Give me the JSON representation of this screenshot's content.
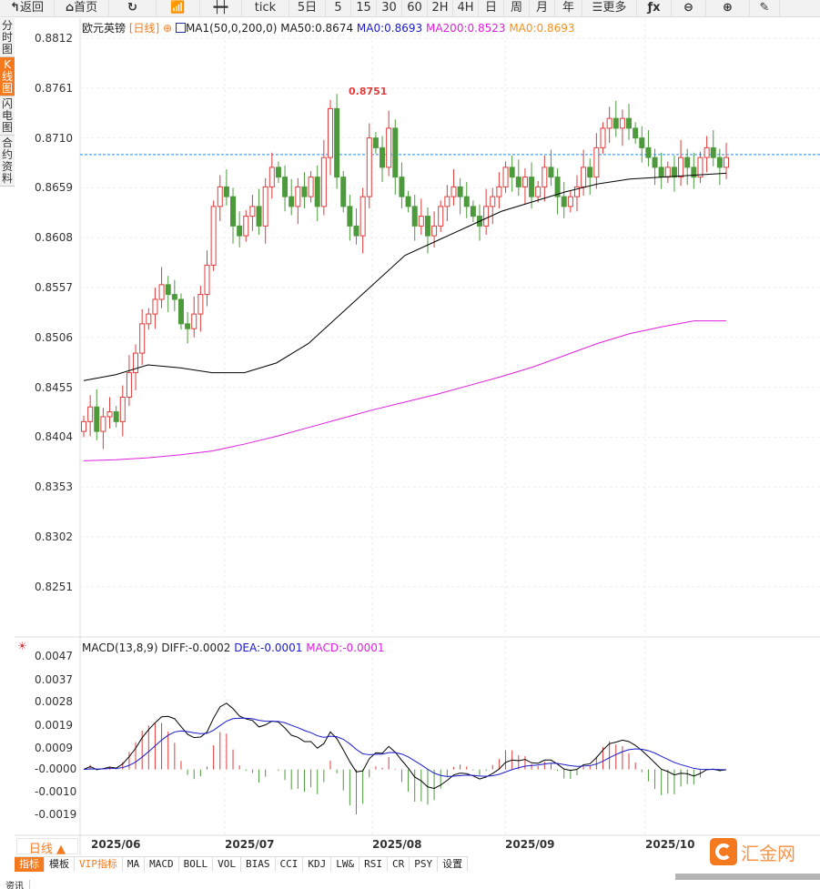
{
  "toolbar": [
    {
      "label": "返回",
      "icon": "back-arrow-icon"
    },
    {
      "label": "首页",
      "icon": "home-icon"
    },
    {
      "label": "",
      "icon": "refresh-icon"
    },
    {
      "label": "",
      "icon": "bar-chart-icon"
    },
    {
      "label": "",
      "icon": "candlestick-icon"
    },
    {
      "label": "tick"
    },
    {
      "label": "5日"
    },
    {
      "label": "5"
    },
    {
      "label": "15"
    },
    {
      "label": "30"
    },
    {
      "label": "60"
    },
    {
      "label": "2H"
    },
    {
      "label": "4H"
    },
    {
      "label": "日"
    },
    {
      "label": "周"
    },
    {
      "label": "月"
    },
    {
      "label": "年"
    },
    {
      "label": "更多",
      "icon": "menu-icon"
    },
    {
      "label": "",
      "icon": "fx-icon"
    },
    {
      "label": "",
      "icon": "zoom-out-icon"
    },
    {
      "label": "",
      "icon": "zoom-in-icon"
    },
    {
      "label": "",
      "icon": "pen-icon"
    }
  ],
  "side_tabs": [
    "分时图",
    "K线图",
    "闪电图",
    "合约资料"
  ],
  "legend": {
    "symbol": "欧元英镑",
    "period": "[日线]",
    "ma_name": "MA1(50,0,200,0)",
    "ma50": "MA50:0.8674",
    "ma0a": "MA0:0.8693",
    "ma200": "MA200:0.8523",
    "ma0b": "MA0:0.8693"
  },
  "macd_legend": {
    "name": "MACD(13,8,9)",
    "diff": "DIFF:-0.0002",
    "dea": "DEA:-0.0001",
    "macd": "MACD:-0.0001"
  },
  "colors": {
    "up": "#e03c3c",
    "down": "#4c9a3c",
    "ma50": "#000000",
    "ma200": "#e020e0",
    "dea": "#1a1acc",
    "accent": "#f57a1f"
  },
  "price_axis": [
    "0.8812",
    "0.8761",
    "0.8710",
    "0.8659",
    "0.8608",
    "0.8557",
    "0.8506",
    "0.8455",
    "0.8404",
    "0.8353",
    "0.8302",
    "0.8251"
  ],
  "macd_axis": [
    "0.0047",
    "0.0037",
    "0.0028",
    "0.0019",
    "0.0009",
    "-0.0000",
    "-0.0010",
    "-0.0019"
  ],
  "max_label": "0.8751",
  "period_button": "日线 ▲",
  "x_labels": [
    "2025/06",
    "2025/07",
    "2025/08",
    "2025/09",
    "2025/10"
  ],
  "bottom_tabs": [
    "指标",
    "模板",
    "VIP指标",
    "MA",
    "MACD",
    "BOLL",
    "VOL",
    "BIAS",
    "CCI",
    "KDJ",
    "LW&",
    "RSI",
    "CR",
    "PSY",
    "设置"
  ],
  "logo": "汇金网",
  "status": "资讯",
  "chart_data": {
    "type": "candlestick",
    "current_price": 0.8693,
    "price_range": [
      0.8251,
      0.8812
    ],
    "closes": [
      0.842,
      0.8435,
      0.841,
      0.8425,
      0.843,
      0.842,
      0.8445,
      0.847,
      0.849,
      0.852,
      0.853,
      0.8545,
      0.856,
      0.855,
      0.8545,
      0.852,
      0.8515,
      0.853,
      0.855,
      0.858,
      0.864,
      0.866,
      0.865,
      0.862,
      0.861,
      0.863,
      0.864,
      0.862,
      0.866,
      0.868,
      0.867,
      0.865,
      0.864,
      0.866,
      0.865,
      0.867,
      0.864,
      0.869,
      0.874,
      0.867,
      0.864,
      0.862,
      0.861,
      0.865,
      0.871,
      0.87,
      0.868,
      0.872,
      0.867,
      0.865,
      0.864,
      0.862,
      0.863,
      0.861,
      0.862,
      0.864,
      0.865,
      0.866,
      0.865,
      0.864,
      0.863,
      0.862,
      0.864,
      0.865,
      0.866,
      0.868,
      0.867,
      0.866,
      0.867,
      0.865,
      0.866,
      0.868,
      0.867,
      0.865,
      0.864,
      0.865,
      0.866,
      0.868,
      0.867,
      0.87,
      0.872,
      0.873,
      0.872,
      0.873,
      0.872,
      0.871,
      0.87,
      0.869,
      0.868,
      0.867,
      0.868,
      0.867,
      0.869,
      0.868,
      0.867,
      0.869,
      0.87,
      0.869,
      0.868,
      0.869
    ],
    "ma50": [
      0.8462,
      0.8468,
      0.8478,
      0.8475,
      0.847,
      0.847,
      0.848,
      0.85,
      0.853,
      0.856,
      0.859,
      0.8605,
      0.862,
      0.8635,
      0.8645,
      0.8655,
      0.8663,
      0.8668,
      0.867,
      0.8672,
      0.8674
    ],
    "ma200": [
      0.838,
      0.8381,
      0.8383,
      0.8386,
      0.839,
      0.8397,
      0.8405,
      0.8414,
      0.8423,
      0.8432,
      0.844,
      0.8448,
      0.8457,
      0.8466,
      0.8476,
      0.8488,
      0.85,
      0.851,
      0.8517,
      0.8523,
      0.8523
    ],
    "macd_range": [
      -0.0019,
      0.0047
    ]
  }
}
